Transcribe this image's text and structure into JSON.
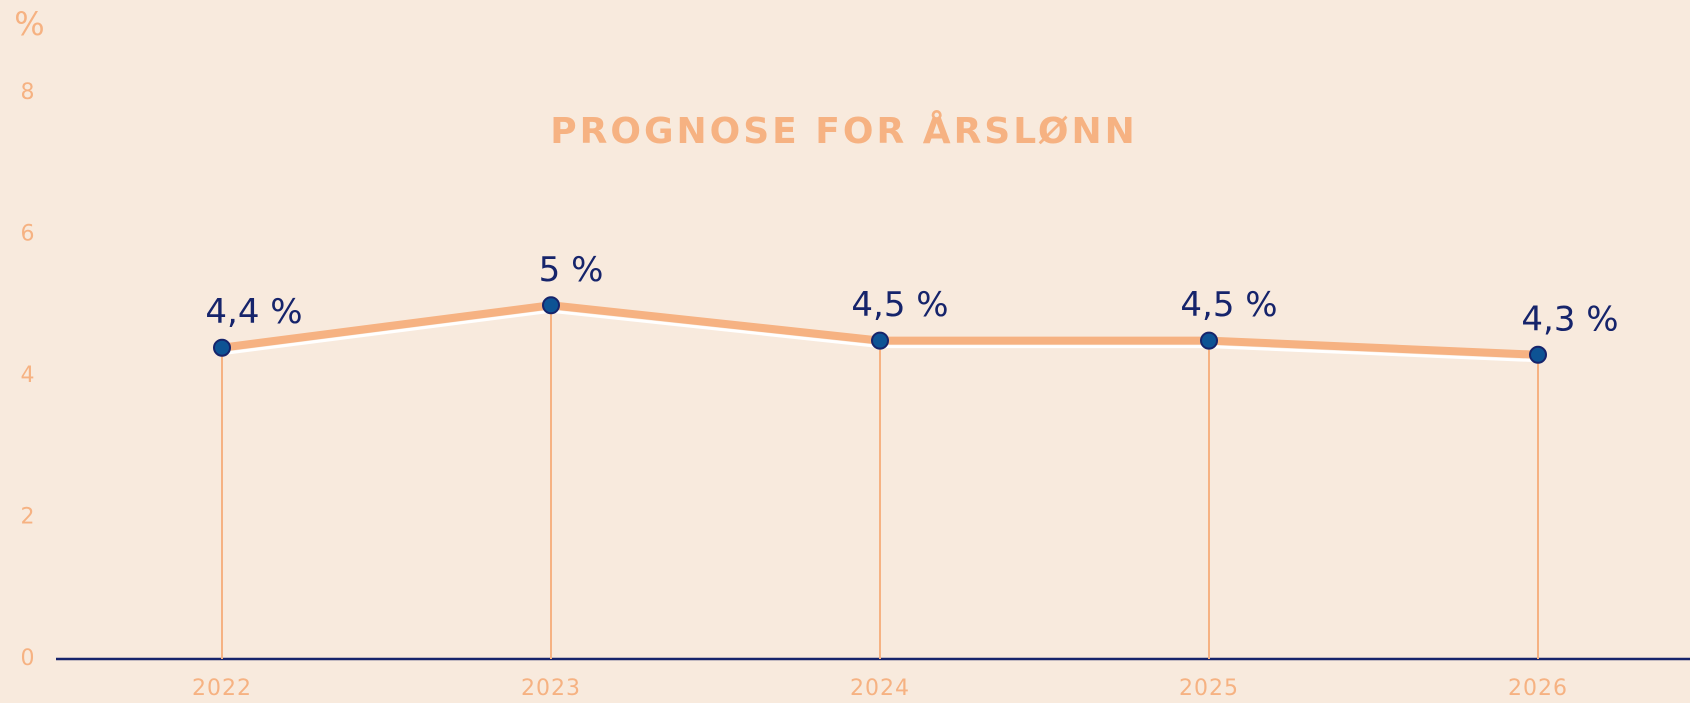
{
  "chart_data": {
    "type": "line",
    "title": "PROGNOSE FOR ÅRSLØNN",
    "ylabel": "%",
    "categories": [
      "2022",
      "2023",
      "2024",
      "2025",
      "2026"
    ],
    "values": [
      4.4,
      5,
      4.5,
      4.5,
      4.3
    ],
    "value_labels": [
      "4,4 %",
      "5 %",
      "4,5 %",
      "4,5 %",
      "4,3 %"
    ],
    "color": "#f6b282",
    "marker_color": "#0d5394",
    "ylim": [
      0,
      8
    ],
    "yticks": [
      0,
      2,
      4,
      6,
      8
    ]
  }
}
